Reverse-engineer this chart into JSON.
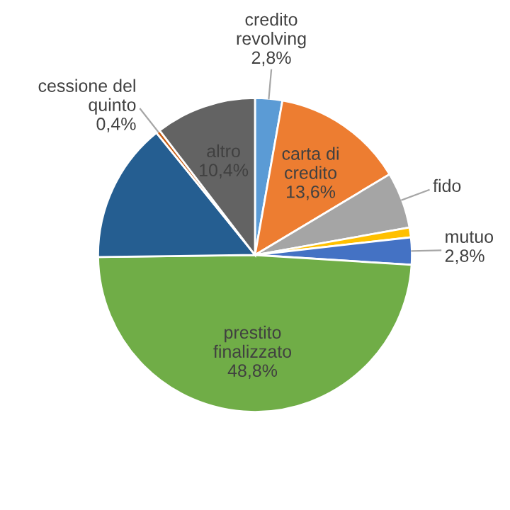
{
  "chart_data": {
    "type": "pie",
    "categories": [
      "credito revolving",
      "carta di credito",
      "fido",
      null,
      "mutuo",
      "prestito finalizzato",
      null,
      "cessione del quinto",
      "altro"
    ],
    "values": [
      2.8,
      13.6,
      5.8,
      1.0,
      2.8,
      48.8,
      14.4,
      0.4,
      10.4
    ],
    "value_labels": [
      "2,8%",
      "13,6%",
      null,
      null,
      "2,8%",
      "48,8%",
      null,
      "0,4%",
      "10,4%"
    ],
    "colors": [
      "#5b9bd5",
      "#ed7d31",
      "#a5a5a5",
      "#ffc000",
      "#4472c4",
      "#70ad47",
      "#255e91",
      "#c55a11",
      "#636363"
    ],
    "legend": false
  }
}
